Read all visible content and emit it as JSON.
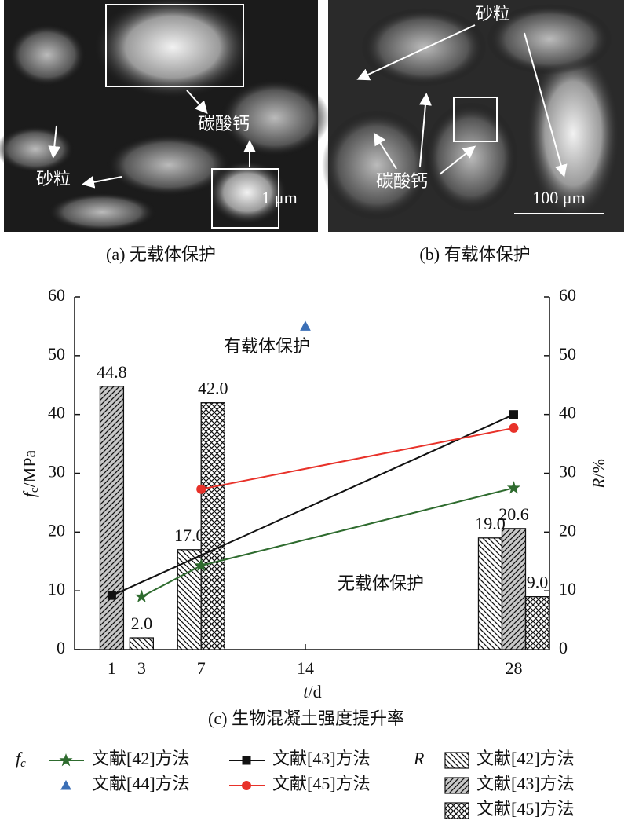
{
  "panels": [
    {
      "caption": "(a) 无载体保护",
      "labels": [
        "碳酸钙",
        "砂粒"
      ],
      "scale": "1 μm"
    },
    {
      "caption": "(b) 有载体保护",
      "labels": [
        "砂粒",
        "碳酸钙"
      ],
      "scale": "100 μm"
    }
  ],
  "chart_data": {
    "type": "combo",
    "title": "(c) 生物混凝土强度提升率",
    "x_label": {
      "symbol": "t",
      "unit": "/d"
    },
    "y_label": {
      "symbol": "f",
      "subscript": "c",
      "unit": "/MPa"
    },
    "y2_label": {
      "symbol": "R",
      "unit": "/%"
    },
    "xlim": [
      -1.5,
      30.4
    ],
    "xticks": [
      1,
      3,
      7,
      14,
      28
    ],
    "ylim": [
      0,
      60
    ],
    "yticks": [
      0,
      10,
      20,
      30,
      40,
      50,
      60
    ],
    "y2lim": [
      0,
      60
    ],
    "y2ticks": [
      0,
      10,
      20,
      30,
      40,
      50,
      60
    ],
    "annotations": [
      "有载体保护",
      "无载体保护"
    ],
    "legend_groups": [
      {
        "symbol": "f",
        "subscript": "c"
      },
      {
        "symbol": "R"
      }
    ],
    "series": [
      {
        "name": "文献[42]方法",
        "type": "line",
        "marker": "star",
        "color": "#2e6b2e",
        "x": [
          3,
          7,
          28
        ],
        "values": [
          9,
          14.3,
          27.5
        ]
      },
      {
        "name": "文献[43]方法",
        "type": "line",
        "marker": "square",
        "color": "#111111",
        "x": [
          1,
          28
        ],
        "values": [
          9.2,
          40
        ]
      },
      {
        "name": "文献[44]方法",
        "type": "line",
        "marker": "triangle",
        "color": "#3b6fb6",
        "x": [
          14
        ],
        "values": [
          55
        ]
      },
      {
        "name": "文献[45]方法",
        "type": "line",
        "marker": "circle",
        "color": "#e8322a",
        "x": [
          7,
          28
        ],
        "values": [
          27.3,
          37.7
        ]
      },
      {
        "name": "文献[42]方法",
        "type": "bar",
        "axis": "y2",
        "hatch": "backslash",
        "color": "#ffffff",
        "x": [
          1,
          3,
          7,
          28
        ],
        "values": [
          null,
          2,
          17,
          19
        ],
        "value_labels": [
          null,
          "2.0",
          "17.0",
          "19.0"
        ]
      },
      {
        "name": "文献[43]方法",
        "type": "bar",
        "axis": "y2",
        "hatch": "slash",
        "color": "#c8c8c8",
        "x": [
          1,
          3,
          7,
          28
        ],
        "values": [
          44.8,
          null,
          null,
          20.6
        ],
        "value_labels": [
          "44.8",
          null,
          null,
          "20.6"
        ]
      },
      {
        "name": "文献[45]方法",
        "type": "bar",
        "axis": "y2",
        "hatch": "cross",
        "color": "#ffffff",
        "x": [
          1,
          3,
          7,
          28
        ],
        "values": [
          null,
          null,
          42,
          9
        ],
        "value_labels": [
          null,
          null,
          "42.0",
          "9.0"
        ]
      }
    ]
  }
}
